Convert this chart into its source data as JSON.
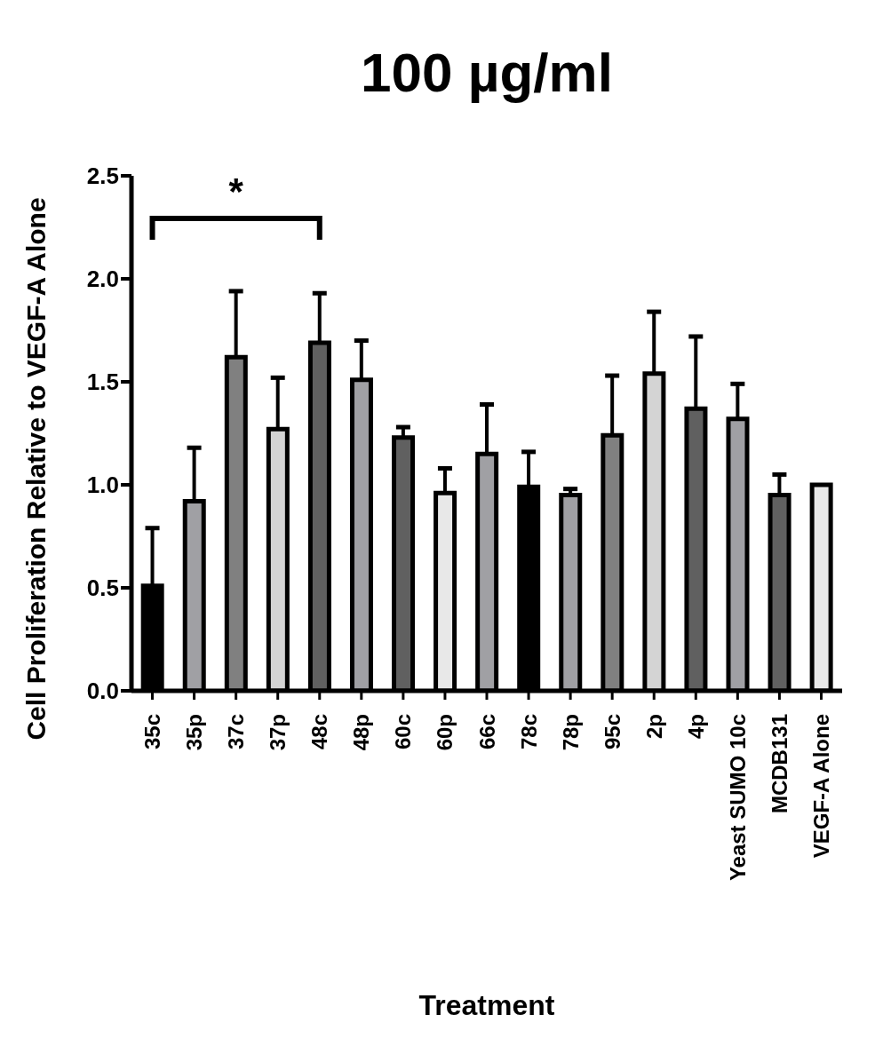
{
  "chart_data": {
    "type": "bar",
    "title": "100 µg/ml",
    "xlabel": "Treatment",
    "ylabel": "Cell Proliferation Relative to VEGF-A Alone",
    "categories": [
      "35c",
      "35p",
      "37c",
      "37p",
      "48c",
      "48p",
      "60c",
      "60p",
      "66c",
      "78c",
      "78p",
      "95c",
      "2p",
      "4p",
      "Yeast SUMO 10c",
      "MCDB131",
      "VEGF-A Alone"
    ],
    "values": [
      0.51,
      0.92,
      1.62,
      1.27,
      1.69,
      1.51,
      1.23,
      0.96,
      1.15,
      0.99,
      0.95,
      1.24,
      1.54,
      1.37,
      1.32,
      0.95,
      1.0
    ],
    "errors": [
      [
        0.51,
        0.79
      ],
      [
        0.92,
        1.18
      ],
      [
        1.62,
        1.94
      ],
      [
        1.27,
        1.52
      ],
      [
        1.69,
        1.93
      ],
      [
        1.51,
        1.7
      ],
      [
        1.23,
        1.28
      ],
      [
        0.96,
        1.08
      ],
      [
        1.15,
        1.39
      ],
      [
        0.99,
        1.16
      ],
      [
        0.95,
        0.98
      ],
      [
        1.24,
        1.53
      ],
      [
        1.54,
        1.84
      ],
      [
        1.37,
        1.72
      ],
      [
        1.32,
        1.49
      ],
      [
        0.95,
        1.05
      ],
      null
    ],
    "colors": [
      "#000000",
      "#a0a0a4",
      "#808080",
      "#d4d4d4",
      "#606060",
      "#a0a0a4",
      "#606060",
      "#e8e8e8",
      "#a0a0a4",
      "#000000",
      "#a0a0a4",
      "#808080",
      "#d4d4d4",
      "#606060",
      "#a0a0a4",
      "#606060",
      "#e8e8e8"
    ],
    "ylim": [
      0,
      2.5
    ],
    "yticks": [
      {
        "value": 0,
        "label": "0.0"
      },
      0.5,
      {
        "value": 1,
        "label": "1.0"
      },
      1.5,
      {
        "value": 2,
        "label": "2.0"
      },
      2.5
    ],
    "annotations": [
      "*"
    ]
  }
}
